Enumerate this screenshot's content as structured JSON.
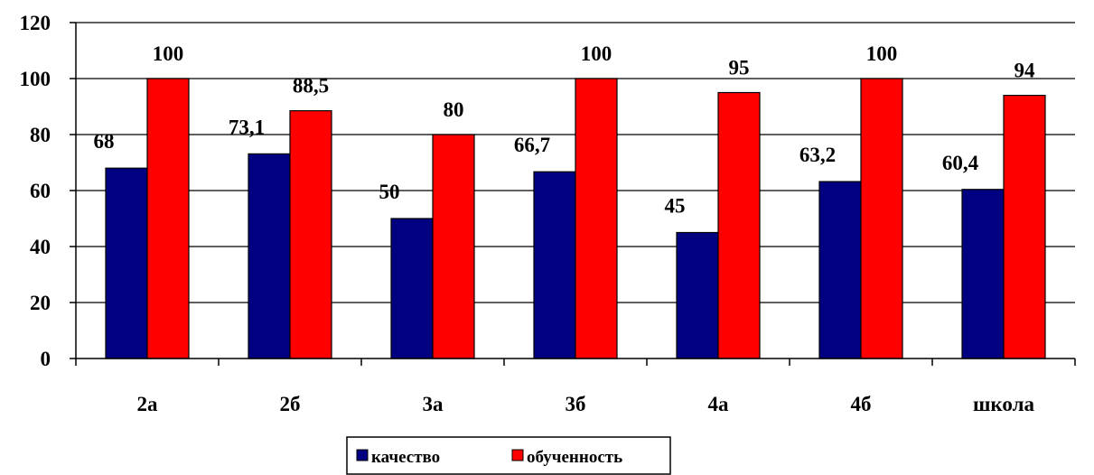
{
  "chart_data": {
    "type": "bar",
    "categories": [
      "2а",
      "2б",
      "3а",
      "3б",
      "4а",
      "4б",
      "школа"
    ],
    "series": [
      {
        "name": "качество",
        "values": [
          68,
          73.1,
          50,
          66.7,
          45,
          63.2,
          60.4
        ],
        "labels": [
          "68",
          "73,1",
          "50",
          "66,7",
          "45",
          "63,2",
          "60,4"
        ],
        "color": "#000080"
      },
      {
        "name": "обученность",
        "values": [
          100,
          88.5,
          80,
          100,
          95,
          100,
          94
        ],
        "labels": [
          "100",
          "88,5",
          "80",
          "100",
          "95",
          "100",
          "94"
        ],
        "color": "#ff0000"
      }
    ],
    "ylim": [
      0,
      120
    ],
    "yticks": [
      "0",
      "20",
      "40",
      "60",
      "80",
      "100",
      "120"
    ],
    "grid": true,
    "legend": "bottom-center"
  }
}
